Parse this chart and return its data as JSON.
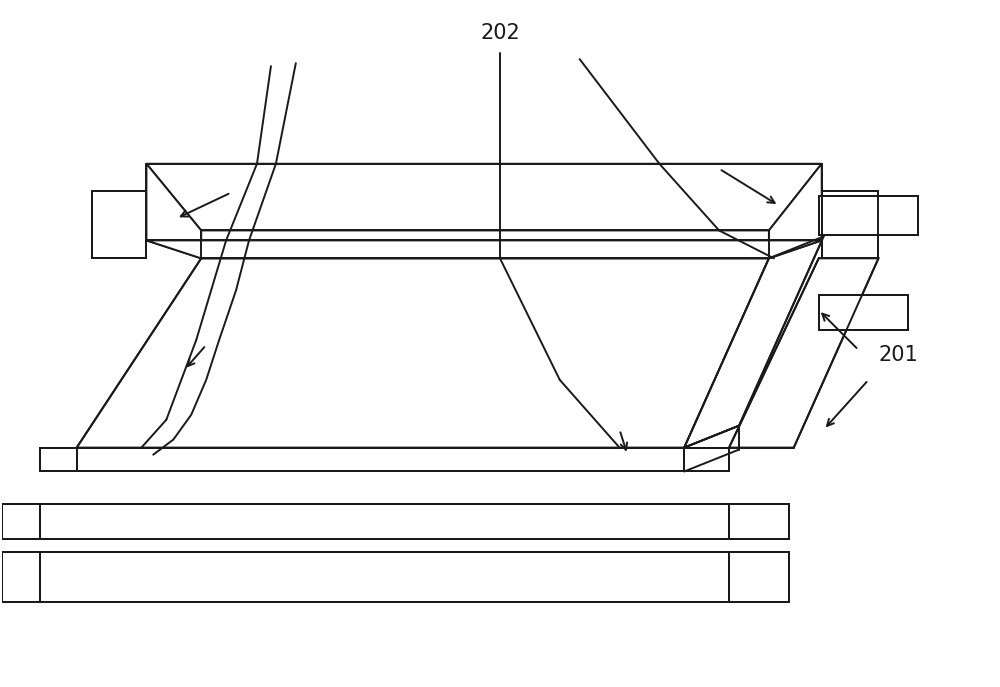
{
  "bg_color": "#ffffff",
  "line_color": "#1a1a1a",
  "line_width": 1.4,
  "figure_width": 10.0,
  "figure_height": 6.87,
  "dpi": 100,
  "label_202": "202",
  "label_201": "201",
  "font_size_labels": 15
}
